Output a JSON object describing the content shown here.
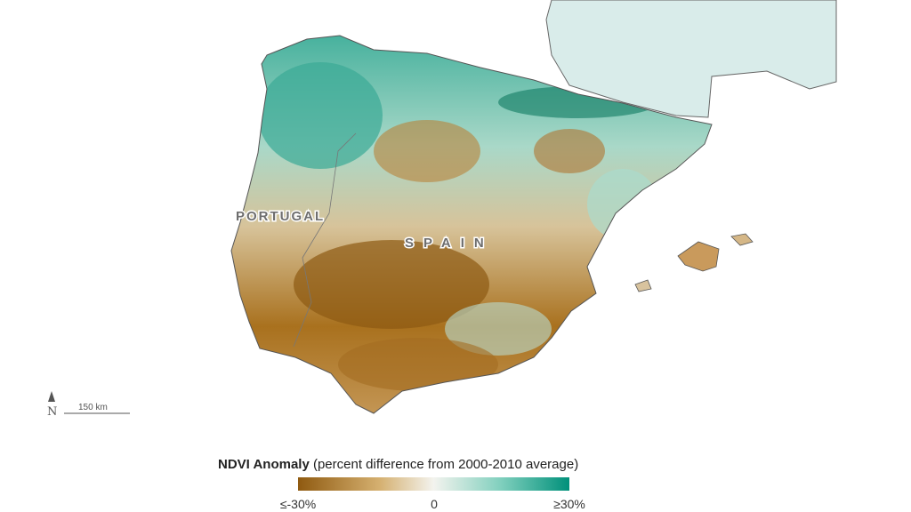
{
  "map": {
    "labels": {
      "portugal": "PORTUGAL",
      "spain": "SPAIN"
    },
    "north_arrow": "N",
    "scale_bar": "150 km",
    "legend": {
      "title": "NDVI Anomaly",
      "subtitle": "(percent difference from 2000-2010 average)",
      "ticks": [
        "≤-30%",
        "0",
        "≥30%"
      ]
    }
  }
}
